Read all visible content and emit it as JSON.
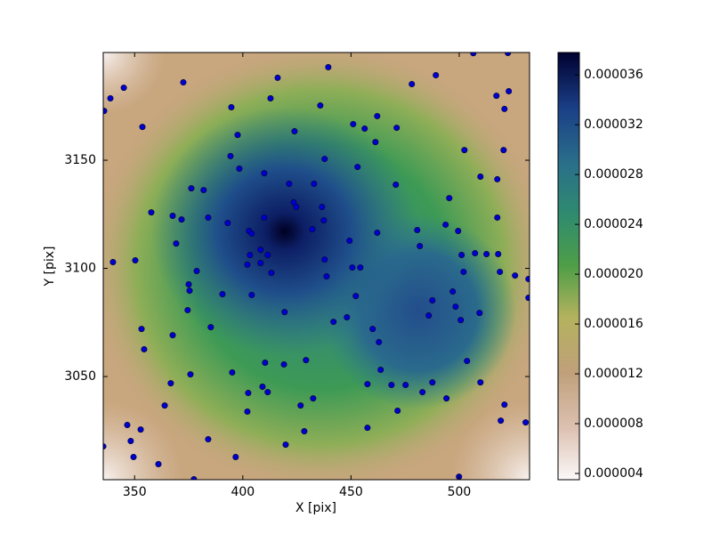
{
  "chart_data": {
    "type": "scatter",
    "xlabel": "X [pix]",
    "ylabel": "Y [pix]",
    "xlim": [
      335.5,
      532.5
    ],
    "ylim": [
      3002.3,
      3199.8
    ],
    "xticks": [
      350,
      400,
      450,
      500
    ],
    "yticks": [
      3050,
      3100,
      3150
    ],
    "color": "#0000cc",
    "x": [
      335.9,
      338.8,
      345.0,
      372.5,
      394.7,
      412.8,
      416.1,
      439.5,
      478.1,
      489.2,
      506.5,
      522.5,
      517.2,
      522.9,
      520.9,
      353.6,
      397.6,
      423.9,
      435.8,
      451.0,
      456.3,
      462.1,
      471.1,
      461.3,
      520.5,
      502.4,
      394.3,
      398.4,
      437.8,
      453.0,
      509.8,
      517.6,
      357.7,
      376.2,
      381.9,
      367.6,
      371.7,
      384.0,
      393.0,
      409.9,
      421.4,
      423.5,
      424.7,
      436.6,
      437.4,
      409.9,
      432.1,
      432.9,
      402.9,
      404.1,
      403.3,
      408.2,
      408.2,
      411.5,
      340.0,
      350.3,
      413.2,
      437.8,
      438.7,
      450.6,
      454.3,
      452.2,
      470.7,
      480.6,
      481.8,
      493.7,
      495.4,
      499.5,
      501.1,
      502.0,
      507.3,
      512.6,
      518.0,
      518.8,
      525.8,
      532.0,
      532.0,
      517.6,
      462.1,
      449.3,
      369.2,
      375.0,
      375.4,
      378.7,
      390.6,
      402.1,
      404.1,
      419.3,
      374.5,
      385.2,
      367.6,
      353.2,
      354.4,
      441.9,
      448.1,
      460.0,
      462.9,
      487.6,
      485.9,
      497.0,
      498.3,
      500.7,
      509.4,
      375.8,
      395.1,
      410.3,
      419.0,
      429.2,
      366.7,
      363.9,
      402.5,
      411.5,
      409.1,
      402.1,
      426.7,
      432.5,
      428.4,
      457.6,
      463.7,
      468.7,
      475.2,
      483.0,
      487.6,
      494.1,
      503.6,
      509.8,
      520.9,
      519.2,
      530.7,
      471.5,
      457.6,
      384.0,
      419.8,
      346.6,
      352.8,
      348.2,
      349.5,
      396.7,
      361.0,
      377.4,
      499.9,
      335.5
    ],
    "y": [
      3172.8,
      3178.6,
      3183.5,
      3186.0,
      3174.5,
      3178.6,
      3188.1,
      3193.0,
      3185.2,
      3189.3,
      3199.5,
      3199.6,
      3179.8,
      3181.9,
      3173.7,
      3165.4,
      3161.7,
      3163.4,
      3175.3,
      3166.7,
      3164.6,
      3170.4,
      3165.0,
      3158.4,
      3154.7,
      3154.7,
      3151.9,
      3146.1,
      3150.6,
      3146.9,
      3142.4,
      3141.2,
      3125.9,
      3137.0,
      3136.2,
      3124.3,
      3122.6,
      3123.5,
      3121.0,
      3144.0,
      3139.1,
      3130.5,
      3128.4,
      3128.4,
      3122.2,
      3123.5,
      3118.1,
      3139.1,
      3117.3,
      3116.1,
      3106.2,
      3108.6,
      3102.5,
      3106.2,
      3102.9,
      3103.7,
      3097.9,
      3104.1,
      3096.3,
      3100.4,
      3100.4,
      3087.2,
      3138.7,
      3117.7,
      3110.3,
      3120.2,
      3132.5,
      3117.3,
      3106.2,
      3098.4,
      3107.0,
      3106.6,
      3106.6,
      3098.4,
      3096.7,
      3095.1,
      3086.4,
      3123.5,
      3116.5,
      3112.8,
      3111.5,
      3092.6,
      3089.7,
      3098.8,
      3088.1,
      3101.7,
      3087.7,
      3079.8,
      3080.7,
      3072.8,
      3069.1,
      3072.0,
      3062.6,
      3075.3,
      3077.4,
      3072.0,
      3065.9,
      3085.2,
      3078.2,
      3089.3,
      3082.3,
      3076.1,
      3079.4,
      3051.0,
      3051.9,
      3056.4,
      3055.6,
      3057.6,
      3046.9,
      3036.6,
      3042.4,
      3042.8,
      3045.3,
      3033.8,
      3036.6,
      3039.9,
      3024.7,
      3046.5,
      3053.1,
      3046.1,
      3046.1,
      3042.8,
      3047.3,
      3039.9,
      3057.2,
      3047.3,
      3037.0,
      3029.6,
      3028.8,
      3034.2,
      3026.3,
      3021.0,
      3018.5,
      3027.6,
      3025.5,
      3020.2,
      3012.8,
      3012.8,
      3009.5,
      3002.5,
      3003.7,
      3017.7
    ],
    "colorbar": {
      "clim": [
        3.5e-06,
        3.78e-05
      ],
      "cticks": [
        {
          "value": 4e-06,
          "label": "0.000004"
        },
        {
          "value": 8e-06,
          "label": "0.000008"
        },
        {
          "value": 1.2e-05,
          "label": "0.000012"
        },
        {
          "value": 1.6e-05,
          "label": "0.000016"
        },
        {
          "value": 2e-05,
          "label": "0.000020"
        },
        {
          "value": 2.4e-05,
          "label": "0.000024"
        },
        {
          "value": 2.8e-05,
          "label": "0.000028"
        },
        {
          "value": 3.2e-05,
          "label": "0.000032"
        },
        {
          "value": 3.6e-05,
          "label": "0.000036"
        }
      ]
    }
  }
}
